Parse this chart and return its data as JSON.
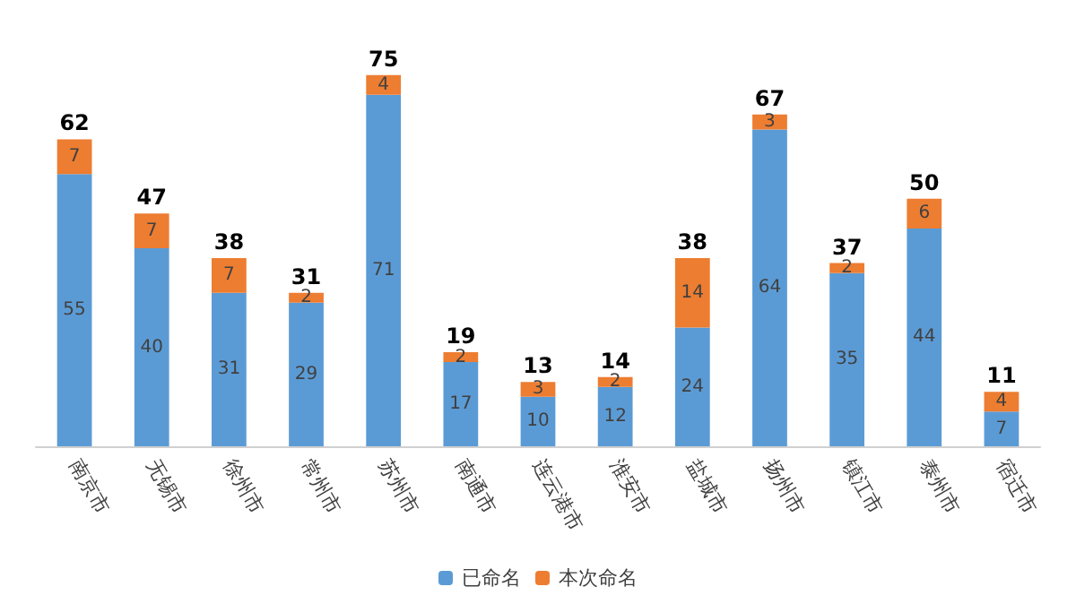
{
  "chart_data": {
    "type": "bar",
    "stacked": true,
    "data_labels": true,
    "legend": "bottom",
    "categories": [
      "南京市",
      "无锡市",
      "徐州市",
      "常州市",
      "苏州市",
      "南通市",
      "连云港市",
      "淮安市",
      "盐城市",
      "扬州市",
      "镇江市",
      "泰州市",
      "宿迁市"
    ],
    "series": [
      {
        "name": "已命名",
        "color": "#5b9bd5",
        "values": [
          55,
          40,
          31,
          29,
          71,
          17,
          10,
          12,
          24,
          64,
          35,
          44,
          7
        ]
      },
      {
        "name": "本次命名",
        "color": "#ed7d31",
        "values": [
          7,
          7,
          7,
          2,
          4,
          2,
          3,
          2,
          14,
          3,
          2,
          6,
          4
        ]
      }
    ],
    "totals": [
      "62",
      "47",
      "38",
      "31",
      "75",
      "19",
      "13",
      "14",
      "38",
      "67",
      "37",
      "50",
      "11"
    ]
  }
}
